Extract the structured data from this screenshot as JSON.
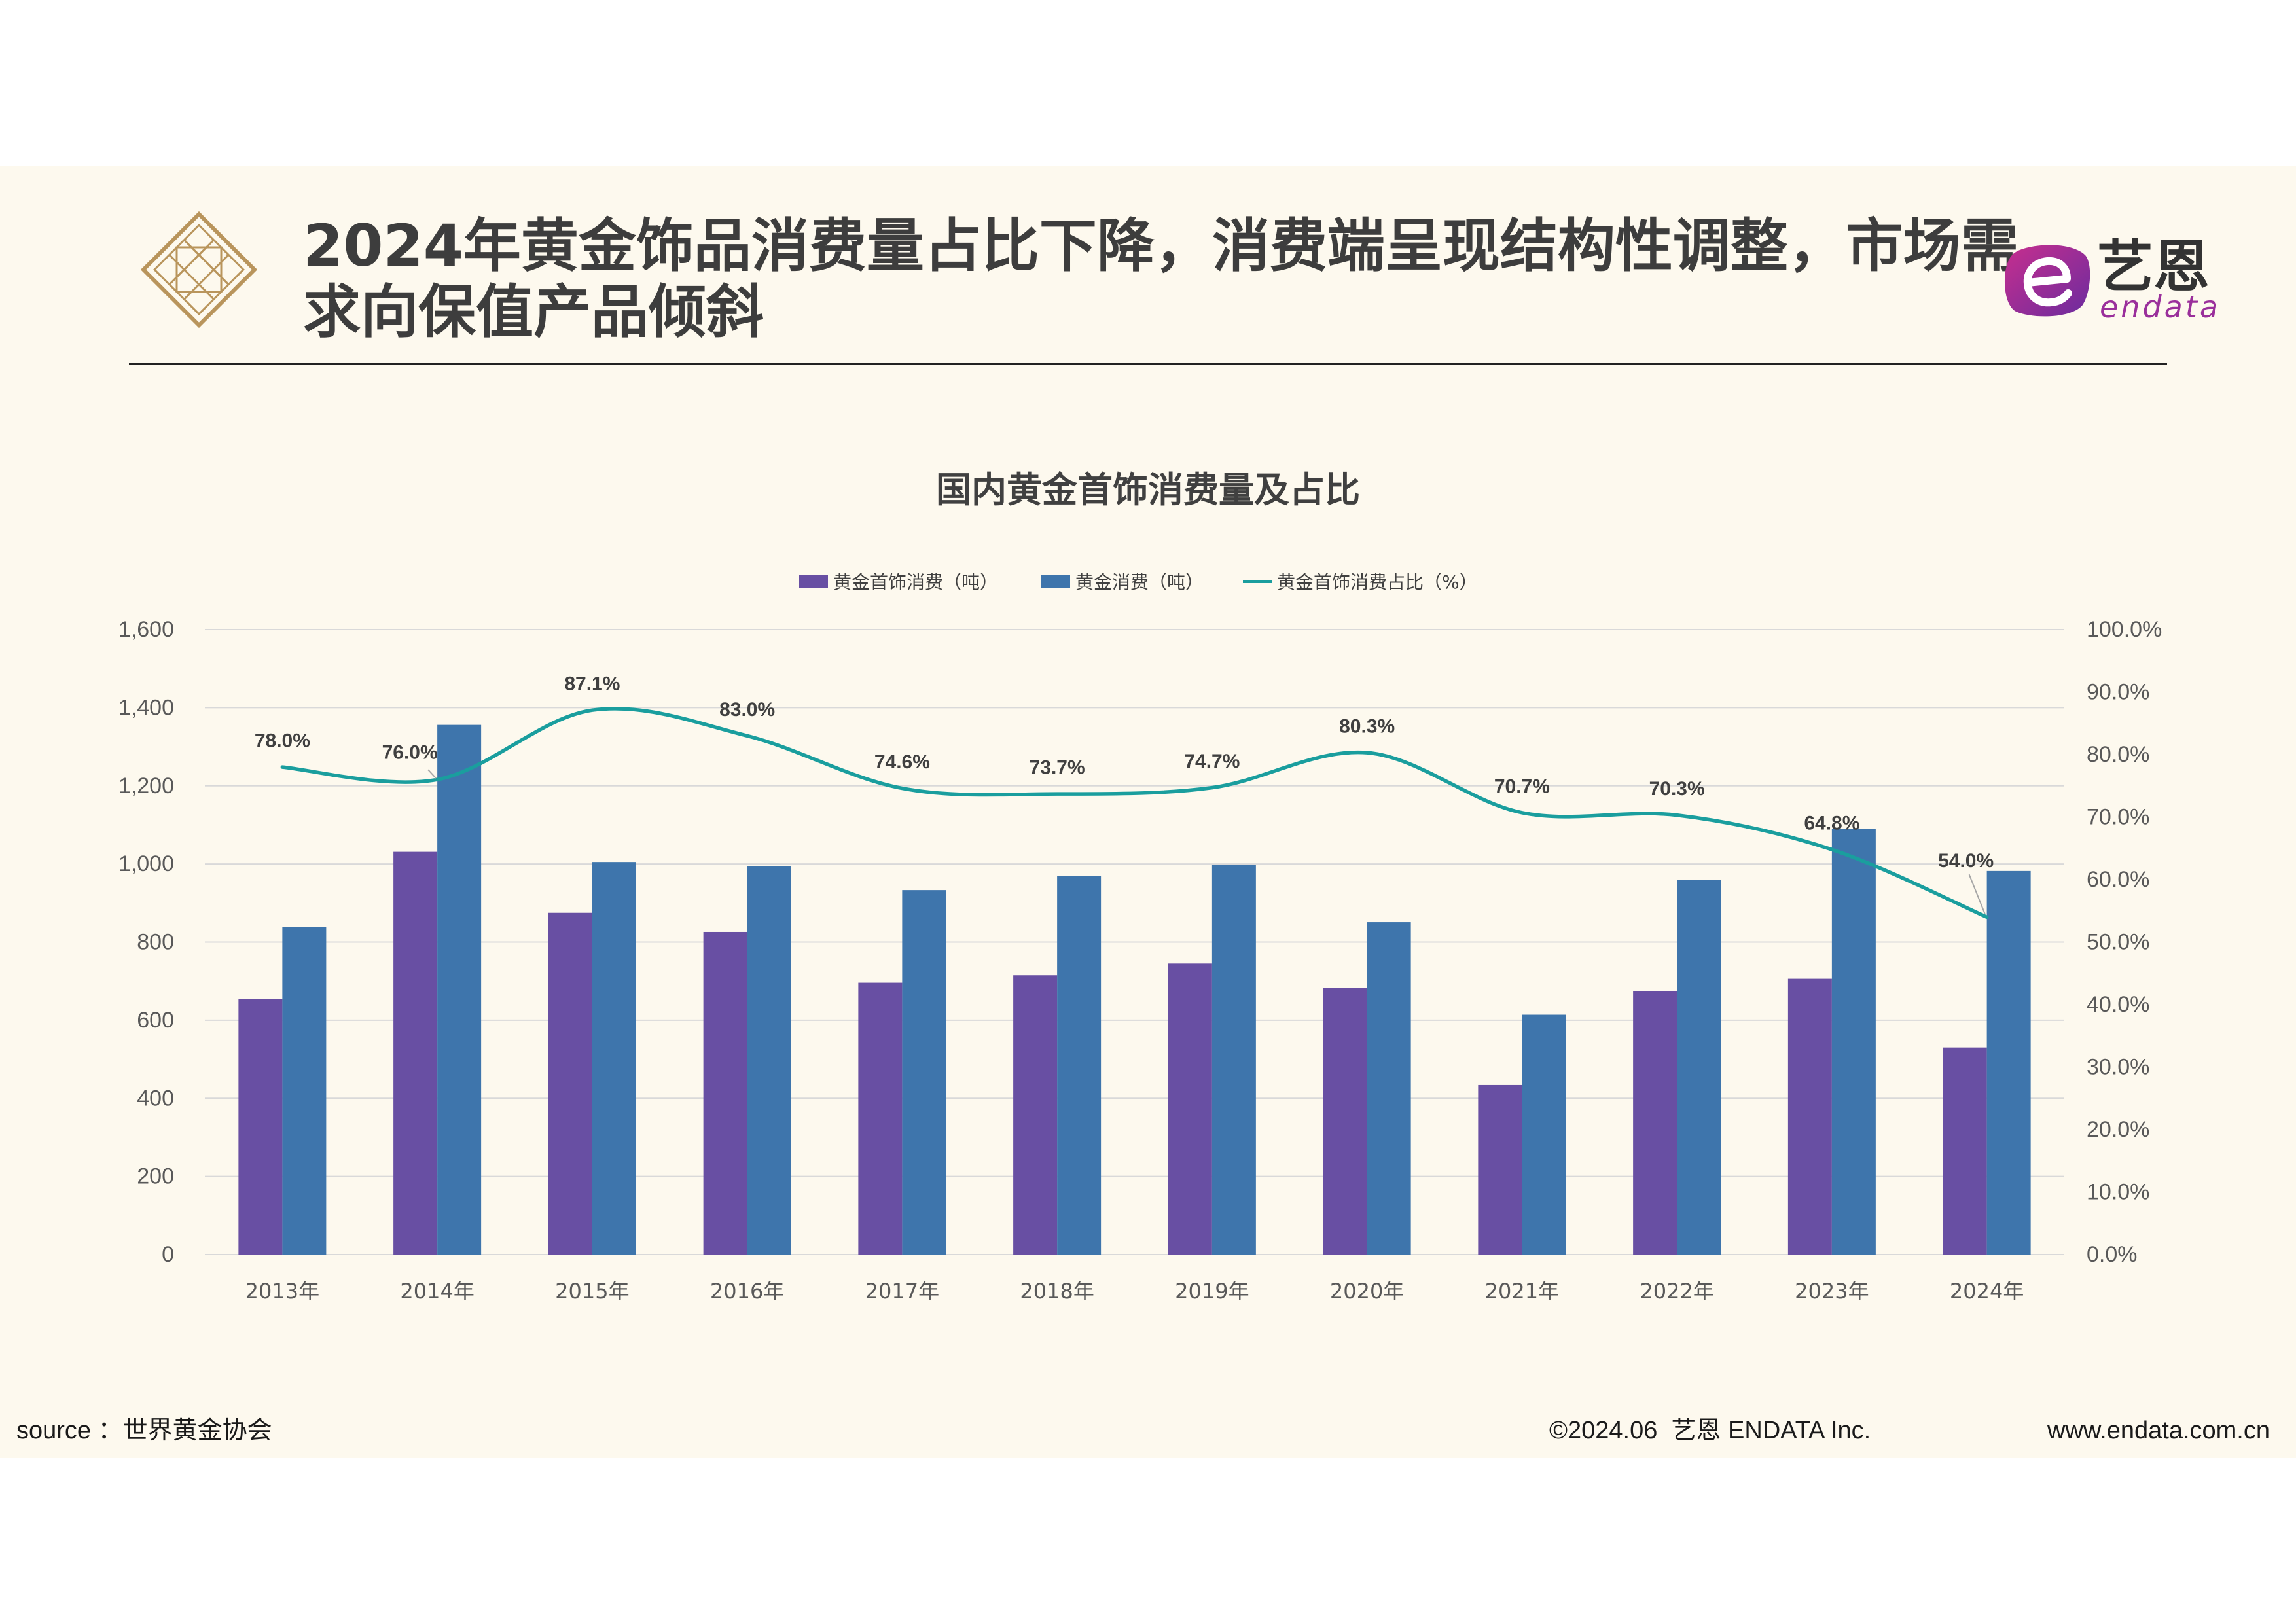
{
  "slide": {
    "title_lines": [
      "2024年黄金饰品消费量占比下降，消费端呈现结构性调整，市场需",
      "求向保值产品倾斜"
    ],
    "decor_icon": "gold-lattice-diamond-icon",
    "brand_logo": {
      "icon": "endata-e-icon",
      "name": "艺恩",
      "sub": "endata"
    },
    "footer": {
      "source": "source ：世界黄金协会",
      "copyright": "©2024.06  艺恩 ENDATA Inc.",
      "website": "www.endata.com.cn"
    }
  },
  "colors": {
    "background": "#FDF9EE",
    "title_text": "#3D3D3D",
    "decor_gold": "#B9955C",
    "brand_purple": "#9A2F9B",
    "gridline": "#D9D9D9"
  },
  "chart_data": {
    "type": "bar",
    "title": "国内黄金首饰消费量及占比",
    "categories": [
      "2013年",
      "2014年",
      "2015年",
      "2016年",
      "2017年",
      "2018年",
      "2019年",
      "2020年",
      "2021年",
      "2022年",
      "2023年",
      "2024年"
    ],
    "series": [
      {
        "name": "黄金首饰消费（吨）",
        "type": "bar",
        "axis": "left",
        "color": "#684FA3",
        "values": [
          654,
          1031,
          875,
          826,
          696,
          715,
          745,
          683,
          434,
          674,
          706,
          530
        ]
      },
      {
        "name": "黄金消费（吨）",
        "type": "bar",
        "axis": "left",
        "color": "#3E75AC",
        "values": [
          839,
          1356,
          1005,
          995,
          933,
          970,
          997,
          851,
          614,
          959,
          1090,
          982
        ]
      },
      {
        "name": "黄金首饰消费占比（%）",
        "type": "line",
        "axis": "right",
        "color": "#1A9E9E",
        "values": [
          78.0,
          76.0,
          87.1,
          83.0,
          74.6,
          73.7,
          74.7,
          80.3,
          70.7,
          70.3,
          64.8,
          54.0
        ],
        "data_labels": [
          "78.0%",
          "76.0%",
          "87.1%",
          "83.0%",
          "74.6%",
          "73.7%",
          "74.7%",
          "80.3%",
          "70.7%",
          "70.3%",
          "64.8%",
          "54.0%"
        ]
      }
    ],
    "y_left": {
      "min": 0,
      "max": 1600,
      "tick_labels": [
        "0",
        "200",
        "400",
        "600",
        "800",
        "1,000",
        "1,200",
        "1,400",
        "1,600"
      ]
    },
    "y_right": {
      "min": 0,
      "max": 100,
      "tick_labels": [
        "0.0%",
        "10.0%",
        "20.0%",
        "30.0%",
        "40.0%",
        "50.0%",
        "60.0%",
        "70.0%",
        "80.0%",
        "90.0%",
        "100.0%"
      ]
    },
    "grid": true,
    "legend": "top-center"
  }
}
